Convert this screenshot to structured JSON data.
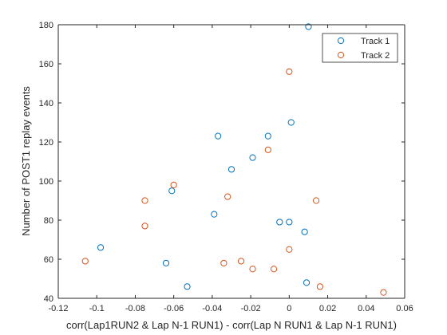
{
  "chart_data": {
    "type": "scatter",
    "xlabel": "corr(Lap1RUN2 & Lap N-1 RUN1) - corr(Lap N RUN1 & Lap N-1 RUN1)",
    "ylabel": "Number of POST1 replay events",
    "xlim": [
      -0.12,
      0.06
    ],
    "ylim": [
      40,
      180
    ],
    "x_ticks": [
      "-0.12",
      "-0.1",
      "-0.08",
      "-0.06",
      "-0.04",
      "-0.02",
      "0",
      "0.02",
      "0.04",
      "0.06"
    ],
    "y_ticks": [
      "40",
      "60",
      "80",
      "100",
      "120",
      "140",
      "160",
      "180"
    ],
    "grid": false,
    "legend_position": "top-right",
    "series": [
      {
        "name": "Track 1",
        "color": "#0072BD",
        "marker": "circle",
        "x": [
          0.01,
          0.001,
          -0.037,
          -0.011,
          -0.019,
          -0.03,
          -0.061,
          -0.039,
          -0.005,
          0.0,
          0.008,
          -0.098,
          -0.064,
          -0.053,
          0.009
        ],
        "y": [
          179,
          130,
          123,
          123,
          112,
          106,
          95,
          83,
          79,
          79,
          74,
          66,
          58,
          46,
          48
        ]
      },
      {
        "name": "Track 2",
        "color": "#D95319",
        "marker": "circle",
        "x": [
          0.0,
          -0.011,
          -0.06,
          -0.032,
          -0.075,
          0.014,
          -0.075,
          -0.106,
          0.0,
          -0.034,
          -0.025,
          -0.019,
          -0.008,
          0.016,
          0.049
        ],
        "y": [
          156,
          116,
          98,
          92,
          90,
          90,
          77,
          59,
          65,
          58,
          59,
          55,
          55,
          46,
          43
        ]
      }
    ]
  }
}
